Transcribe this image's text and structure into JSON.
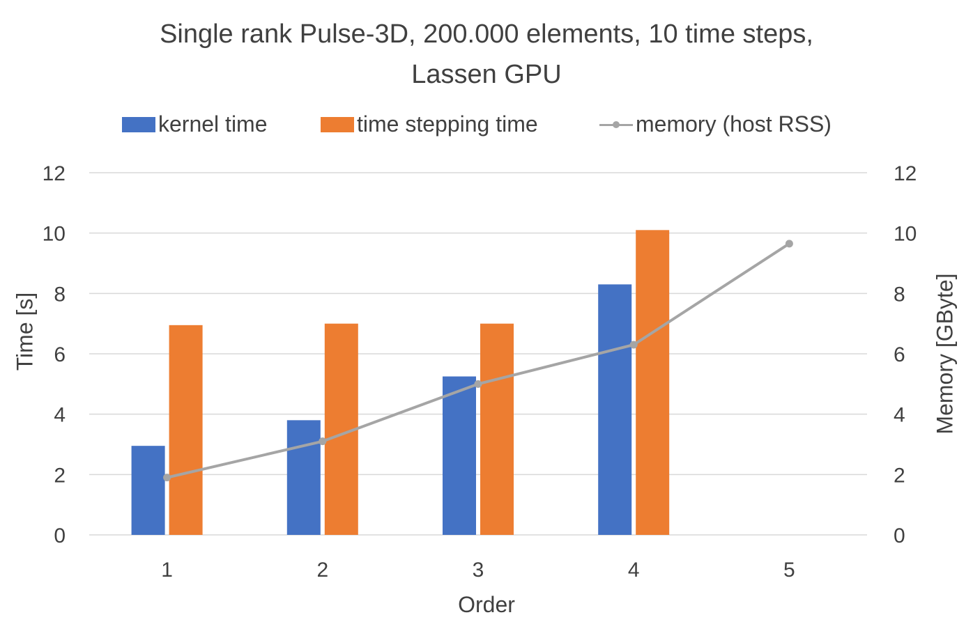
{
  "chart_data": {
    "type": "bar",
    "title": "Single rank Pulse-3D, 200.000 elements, 10 time steps,",
    "title_line2": "Lassen GPU",
    "xlabel": "Order",
    "ylabel": "Time [s]",
    "y2label": "Memory [GByte]",
    "categories": [
      "1",
      "2",
      "3",
      "4",
      "5"
    ],
    "ylim": [
      0,
      12
    ],
    "y2lim": [
      0,
      12
    ],
    "yticks": [
      "0",
      "2",
      "4",
      "6",
      "8",
      "10",
      "12"
    ],
    "y2ticks": [
      "0",
      "2",
      "4",
      "6",
      "8",
      "10",
      "12"
    ],
    "grid": true,
    "legend_position": "top",
    "series": [
      {
        "name": "kernel time",
        "kind": "bar",
        "axis": "left",
        "color": "#4472C4",
        "values": [
          2.95,
          3.8,
          5.25,
          8.3,
          null
        ]
      },
      {
        "name": "time stepping time",
        "kind": "bar",
        "axis": "left",
        "color": "#ED7D31",
        "values": [
          6.95,
          7.0,
          7.0,
          10.1,
          null
        ]
      },
      {
        "name": "memory (host RSS)",
        "kind": "line",
        "axis": "right",
        "color": "#A5A5A5",
        "values": [
          1.9,
          3.1,
          5.0,
          6.3,
          9.65
        ]
      }
    ]
  }
}
